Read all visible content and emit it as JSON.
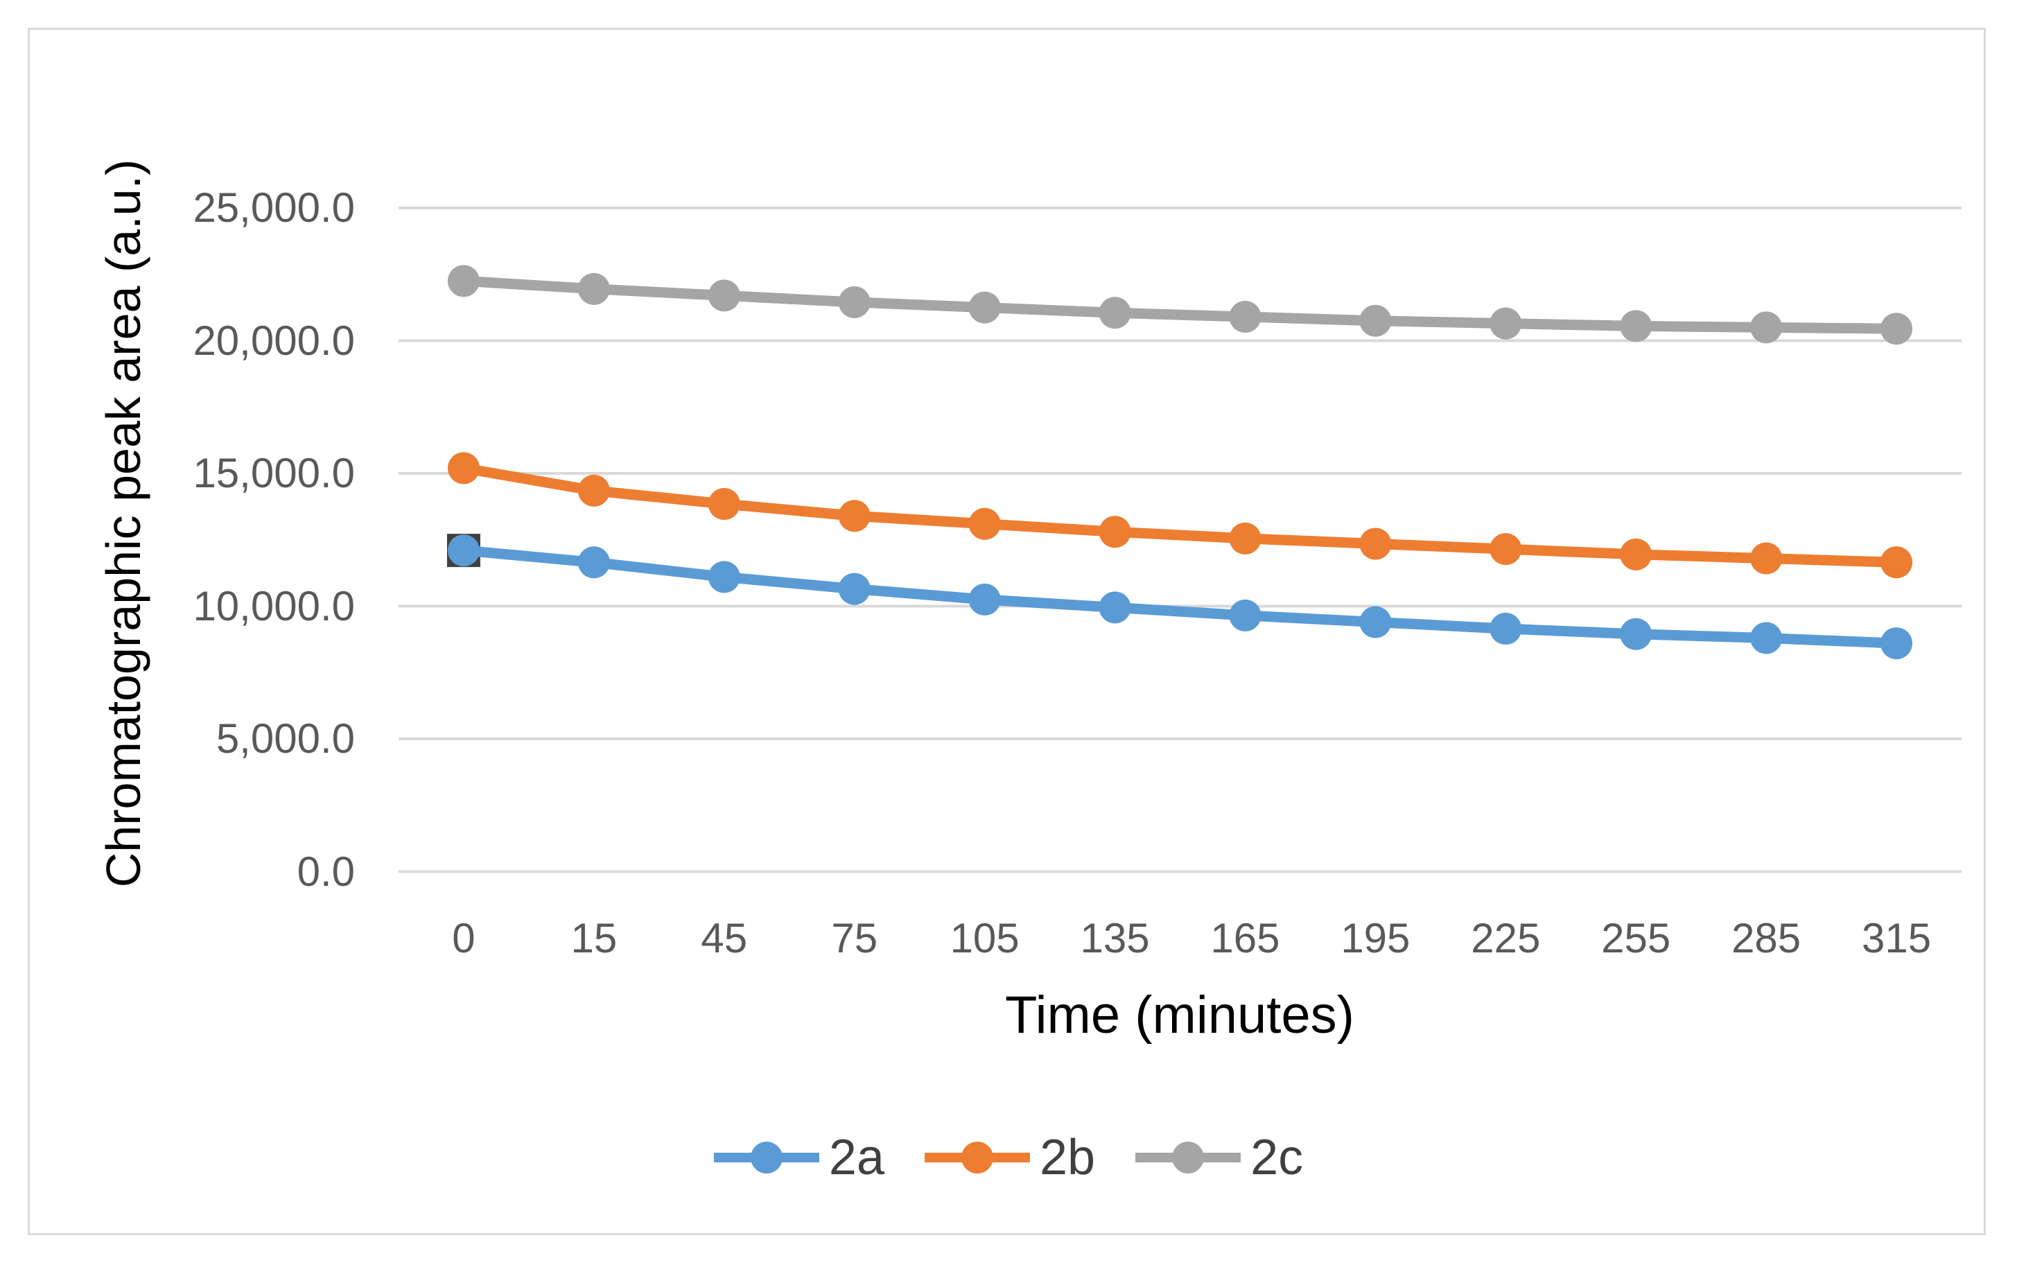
{
  "figure": {
    "background_color": "#FFFFFF",
    "border_color": "#D9D9D9"
  },
  "chart_data": {
    "type": "line",
    "title": "",
    "xlabel": "Time (minutes)",
    "ylabel": "Chromatographic peak area (a.u.)",
    "categories": [
      0,
      15,
      45,
      75,
      105,
      135,
      165,
      195,
      225,
      255,
      285,
      315
    ],
    "x_tick_labels": [
      "0",
      "15",
      "45",
      "75",
      "105",
      "135",
      "165",
      "195",
      "225",
      "255",
      "285",
      "315"
    ],
    "series": [
      {
        "name": "2a",
        "color": "#5B9BD5",
        "values": [
          12100,
          11650,
          11100,
          10650,
          10250,
          9950,
          9650,
          9400,
          9150,
          8950,
          8800,
          8600
        ]
      },
      {
        "name": "2b",
        "color": "#ED7D31",
        "values": [
          15200,
          14350,
          13850,
          13400,
          13100,
          12800,
          12550,
          12350,
          12150,
          11950,
          11800,
          11650
        ]
      },
      {
        "name": "2c",
        "color": "#A5A5A5",
        "values": [
          22250,
          21950,
          21700,
          21450,
          21250,
          21050,
          20900,
          20750,
          20650,
          20550,
          20500,
          20450
        ]
      }
    ],
    "ylim": [
      0,
      25000
    ],
    "y_tick_step": 5000,
    "y_ticks": [
      {
        "value": 25000,
        "label": "25,000.0"
      },
      {
        "value": 20000,
        "label": "20,000.0"
      },
      {
        "value": 15000,
        "label": "15,000.0"
      },
      {
        "value": 10000,
        "label": "10,000.0"
      },
      {
        "value": 5000,
        "label": "5,000.0"
      },
      {
        "value": 0,
        "label": "0.0"
      }
    ],
    "grid": "horizontal",
    "gridline_color": "#D9D9D9",
    "tick_label_color": "#595959",
    "axis_title_color": "#000000",
    "legend_position": "bottom",
    "legend_text_color": "#404040",
    "marker": "circle",
    "first_point_backdrop": {
      "series": "2a",
      "point_index": 0,
      "shape": "square",
      "color": "#404040"
    }
  }
}
